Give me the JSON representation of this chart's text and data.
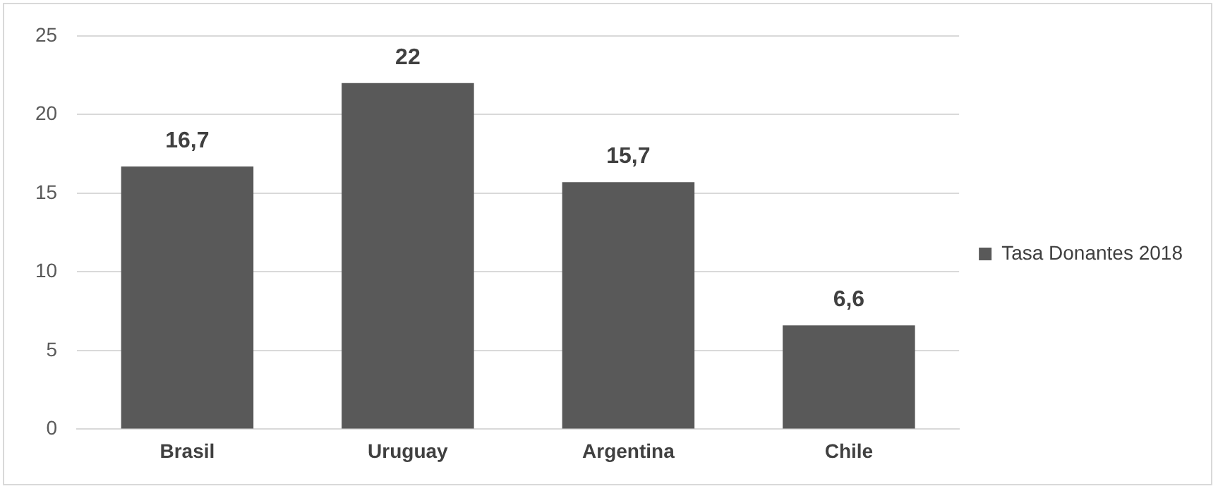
{
  "chart_data": {
    "type": "bar",
    "categories": [
      "Brasil",
      "Uruguay",
      "Argentina",
      "Chile"
    ],
    "series": [
      {
        "name": "Tasa Donantes 2018",
        "color": "#595959",
        "values": [
          16.7,
          22,
          15.7,
          6.6
        ],
        "value_labels": [
          "16,7",
          "22",
          "15,7",
          "6,6"
        ]
      }
    ],
    "ylim": [
      0,
      25
    ],
    "yticks": [
      0,
      5,
      10,
      15,
      20,
      25
    ],
    "grid": "y",
    "legend": "right"
  }
}
